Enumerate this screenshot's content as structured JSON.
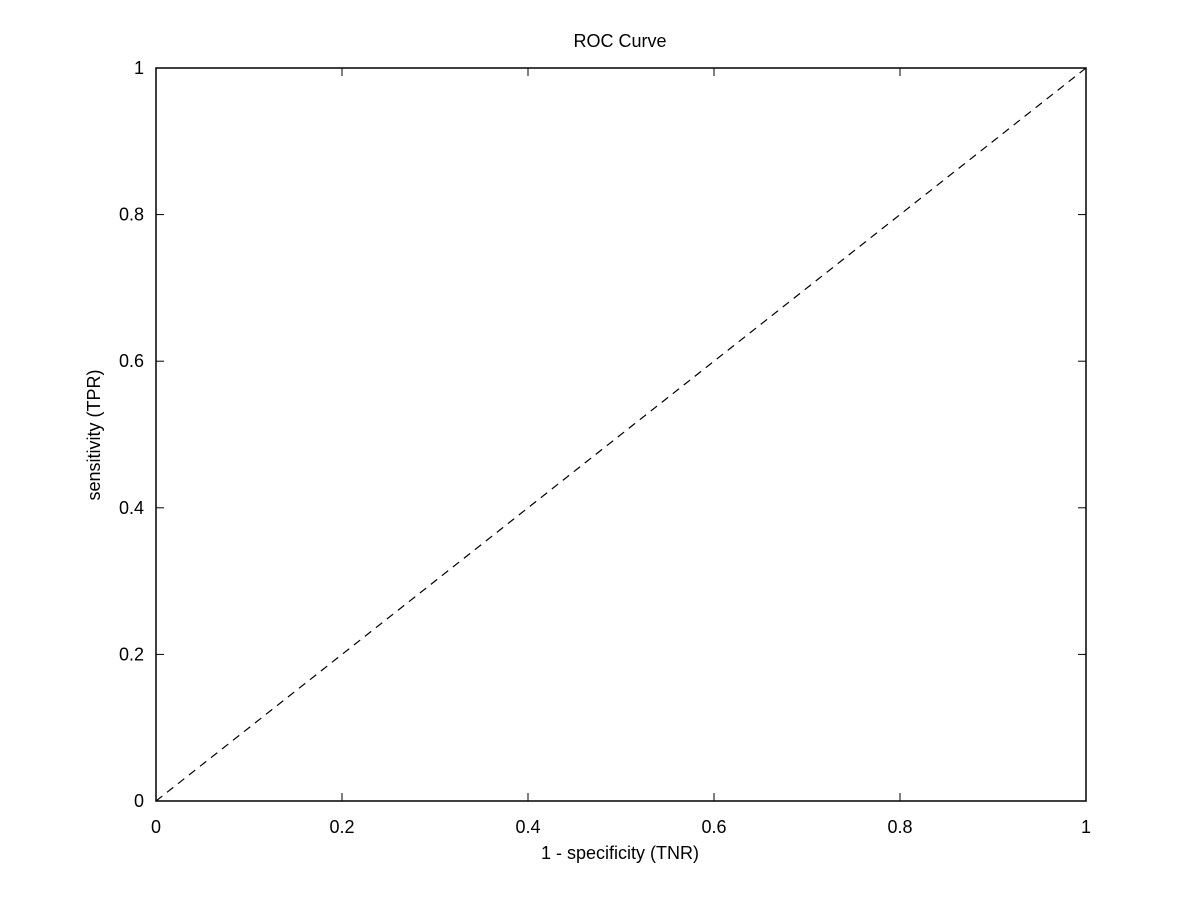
{
  "chart_data": {
    "type": "line",
    "title": "ROC Curve",
    "xlabel": "1 - specificity (TNR)",
    "ylabel": "sensitivity (TPR)",
    "xlim": [
      0,
      1
    ],
    "ylim": [
      0,
      1
    ],
    "xticks": [
      0,
      0.2,
      0.4,
      0.6,
      0.8,
      1
    ],
    "yticks": [
      0,
      0.2,
      0.4,
      0.6,
      0.8,
      1
    ],
    "xtick_labels": [
      "0",
      "0.2",
      "0.4",
      "0.6",
      "0.8",
      "1"
    ],
    "ytick_labels": [
      "0",
      "0.2",
      "0.4",
      "0.6",
      "0.8",
      "1"
    ],
    "grid": false,
    "legend": "none",
    "series": [
      {
        "style": "dashed",
        "color": "#000000",
        "x": [
          0,
          1
        ],
        "y": [
          0,
          1
        ]
      }
    ]
  }
}
